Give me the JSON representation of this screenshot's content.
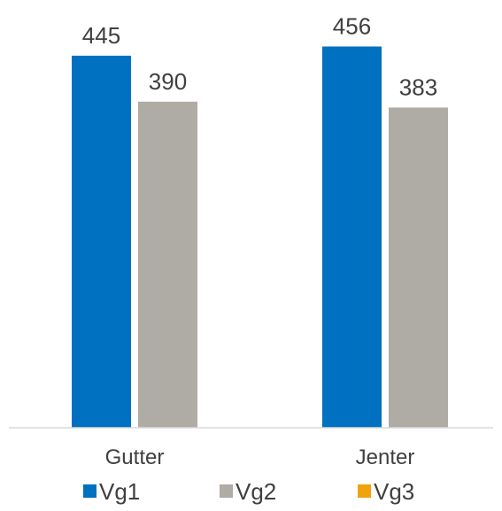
{
  "chart_data": {
    "type": "bar",
    "categories": [
      "Gutter",
      "Jenter"
    ],
    "series": [
      {
        "name": "Vg1",
        "color": "#0070C0",
        "values": [
          445,
          456
        ]
      },
      {
        "name": "Vg2",
        "color": "#AFABA5",
        "values": [
          390,
          383
        ]
      },
      {
        "name": "Vg3",
        "color": "#F0A30A",
        "values": [
          null,
          null
        ]
      }
    ],
    "ylim": [
      0,
      500
    ],
    "grid": false,
    "legend_position": "bottom",
    "data_labels": true
  }
}
